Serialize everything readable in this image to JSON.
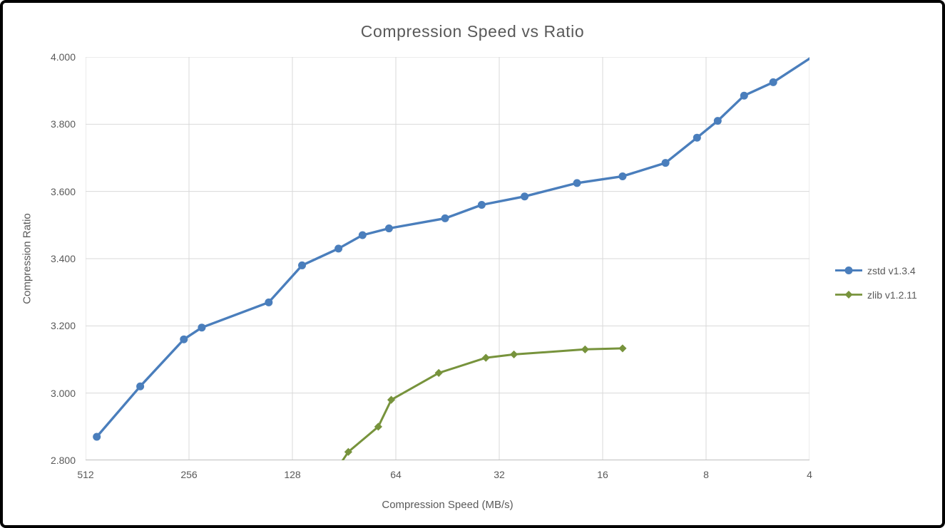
{
  "window": {
    "background": "#ffffff",
    "frame_border_color": "#000000"
  },
  "chart_data": {
    "type": "line",
    "title": "Compression Speed vs Ratio",
    "xlabel": "Compression Speed (MB/s)",
    "ylabel": "Compression Ratio",
    "x_scale": "log2_reversed",
    "x_range": [
      512,
      4
    ],
    "y_range": [
      2.8,
      4.0
    ],
    "x_ticks": [
      "512",
      "256",
      "128",
      "64",
      "32",
      "16",
      "8",
      "4"
    ],
    "y_ticks": [
      "2.800",
      "3.000",
      "3.200",
      "3.400",
      "3.600",
      "3.800",
      "4.000"
    ],
    "grid": true,
    "gridline_color": "#d9d9d9",
    "axis_line_color": "#bfbfbf",
    "text_color": "#595959",
    "legend_position": "right-outside",
    "series": [
      {
        "name": "zstd v1.3.4",
        "color": "#4a7ebc",
        "marker": "circle",
        "points": [
          {
            "speed": 475,
            "ratio": 2.87
          },
          {
            "speed": 355,
            "ratio": 3.02
          },
          {
            "speed": 265,
            "ratio": 3.16
          },
          {
            "speed": 235,
            "ratio": 3.195
          },
          {
            "speed": 150,
            "ratio": 3.27
          },
          {
            "speed": 120,
            "ratio": 3.38
          },
          {
            "speed": 94,
            "ratio": 3.43
          },
          {
            "speed": 80,
            "ratio": 3.47
          },
          {
            "speed": 67,
            "ratio": 3.49
          },
          {
            "speed": 46,
            "ratio": 3.52
          },
          {
            "speed": 36,
            "ratio": 3.56
          },
          {
            "speed": 27,
            "ratio": 3.585
          },
          {
            "speed": 19,
            "ratio": 3.625
          },
          {
            "speed": 14,
            "ratio": 3.645
          },
          {
            "speed": 10.5,
            "ratio": 3.685
          },
          {
            "speed": 8.5,
            "ratio": 3.76
          },
          {
            "speed": 7.4,
            "ratio": 3.81
          },
          {
            "speed": 6.2,
            "ratio": 3.885
          },
          {
            "speed": 5.1,
            "ratio": 3.925
          },
          {
            "speed": 3.8,
            "ratio": 4.01,
            "clipped": true
          }
        ]
      },
      {
        "name": "zlib v1.2.11",
        "color": "#77933c",
        "marker": "diamond",
        "points": [
          {
            "speed": 100,
            "ratio": 2.74,
            "clipped": true
          },
          {
            "speed": 88,
            "ratio": 2.825
          },
          {
            "speed": 72,
            "ratio": 2.9
          },
          {
            "speed": 66,
            "ratio": 2.98
          },
          {
            "speed": 48,
            "ratio": 3.06
          },
          {
            "speed": 35,
            "ratio": 3.105
          },
          {
            "speed": 29,
            "ratio": 3.115
          },
          {
            "speed": 18,
            "ratio": 3.13
          },
          {
            "speed": 14,
            "ratio": 3.133
          }
        ]
      }
    ]
  }
}
